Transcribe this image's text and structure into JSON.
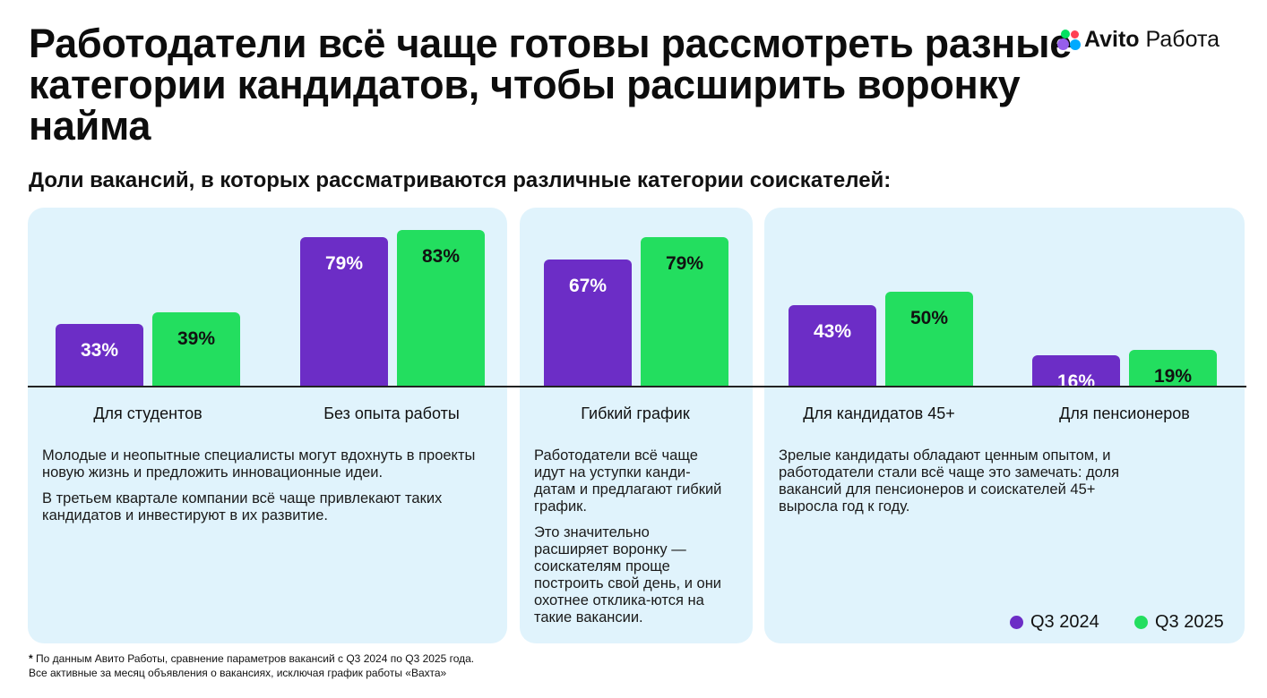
{
  "title": "Работодатели всё чаще готовы рассмотреть разные категории кандидатов, чтобы расширить воронку найма",
  "logo": {
    "brand": "Avito",
    "product": "Работа"
  },
  "subtitle": "Доли вакансий, в которых рассматриваются различные категории соискателей:",
  "colors": {
    "q3_2024": "#6C2DC6",
    "q3_2025": "#23DE5F",
    "panel_bg": "#E0F3FC"
  },
  "chart_data": {
    "type": "bar",
    "categories": [
      "Для студентов",
      "Без опыта работы",
      "Гибкий график",
      "Для кандидатов 45+",
      "Для пенсионеров"
    ],
    "series": [
      {
        "name": "Q3 2024",
        "values": [
          33,
          79,
          67,
          43,
          16
        ]
      },
      {
        "name": "Q3 2025",
        "values": [
          39,
          83,
          79,
          50,
          19
        ]
      }
    ],
    "unit": "%",
    "ylim": [
      0,
      100
    ],
    "legend_position": "bottom-right"
  },
  "labels": {
    "q3_2024": [
      "33%",
      "79%",
      "67%",
      "43%",
      "16%"
    ],
    "q3_2025": [
      "39%",
      "83%",
      "79%",
      "50%",
      "19%"
    ]
  },
  "descriptions": {
    "panel1": [
      "Молодые и неопытные специалисты могут вдохнуть в проекты новую жизнь и предложить инновационные идеи.",
      "В третьем квартале компании всё чаще привлекают таких кандидатов и инвестируют в их развитие."
    ],
    "panel2": [
      "Работодатели всё чаще идут на уступки канди-датам и предлагают гибкий график.",
      "Это значительно расширяет воронку — соискателям проще построить свой день, и они охотнее отклика-ются на такие вакансии."
    ],
    "panel3": [
      "Зрелые кандидаты обладают ценным опытом, и работодатели стали всё чаще это замечать: доля вакансий для пенсионеров и соискателей 45+ выросла год к году."
    ]
  },
  "legend": {
    "q3_2024": "Q3 2024",
    "q3_2025": "Q3 2025"
  },
  "footnote": {
    "marker": "*",
    "line1": "По данным Авито Работы, сравнение параметров вакансий с Q3 2024 по Q3 2025 года.",
    "line2": "Все активные за месяц объявления о вакансиях, исключая график работы «Вахта»"
  }
}
